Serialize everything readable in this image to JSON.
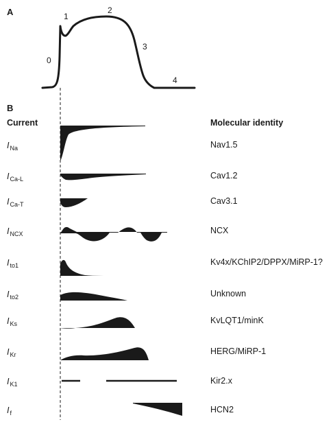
{
  "panel_a": {
    "label": "A",
    "phases": [
      "0",
      "1",
      "2",
      "3",
      "4"
    ]
  },
  "panel_b": {
    "label": "B",
    "current_header": "Current",
    "identity_header": "Molecular identity",
    "rows": [
      {
        "symbol": "I",
        "subscript": "Na",
        "identity": "Nav1.5"
      },
      {
        "symbol": "I",
        "subscript": "Ca-L",
        "identity": "Cav1.2"
      },
      {
        "symbol": "I",
        "subscript": "Ca-T",
        "identity": "Cav3.1"
      },
      {
        "symbol": "I",
        "subscript": "NCX",
        "identity": "NCX"
      },
      {
        "symbol": "I",
        "subscript": "to1",
        "identity": "Kv4x/KChIP2/DPPX/MiRP-1?"
      },
      {
        "symbol": "I",
        "subscript": "to2",
        "identity": "Unknown"
      },
      {
        "symbol": "I",
        "subscript": "Ks",
        "identity": "KvLQT1/minK"
      },
      {
        "symbol": "I",
        "subscript": "Kr",
        "identity": "HERG/MiRP-1"
      },
      {
        "symbol": "I",
        "subscript": "K1",
        "identity": "Kir2.x"
      },
      {
        "symbol": "I",
        "subscript": "f",
        "identity": "HCN2"
      }
    ]
  },
  "colors": {
    "ink": "#1a1a1a"
  }
}
